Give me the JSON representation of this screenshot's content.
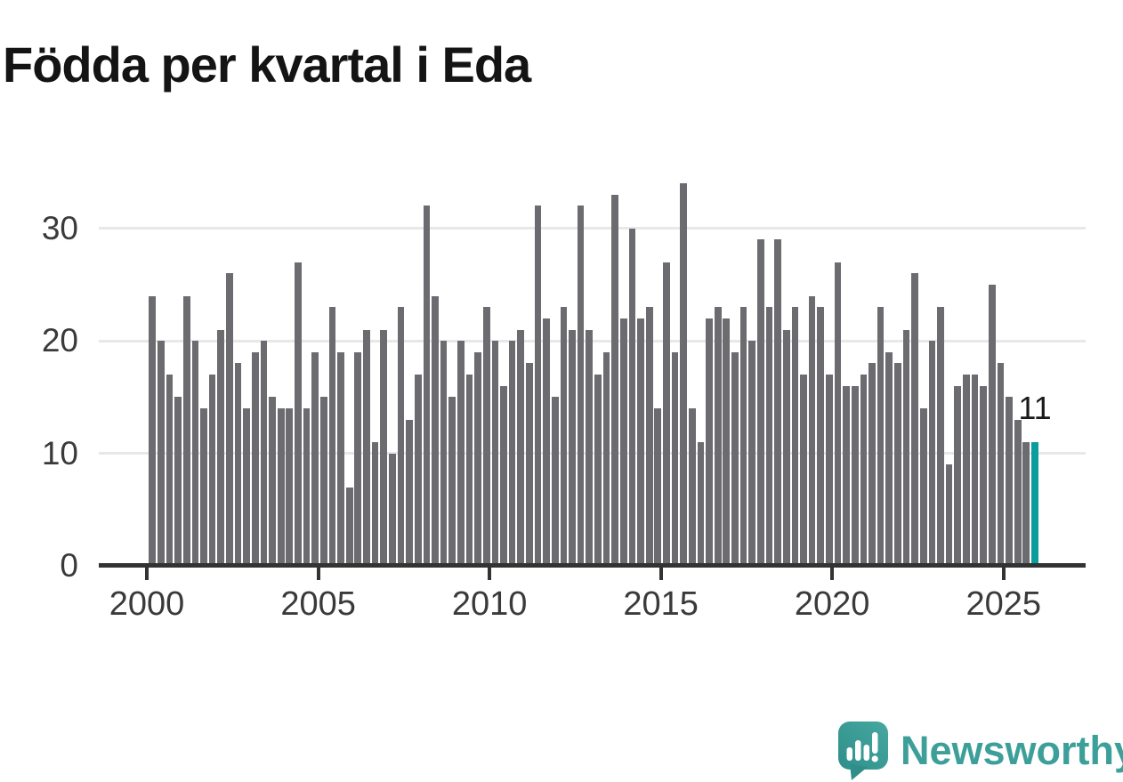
{
  "title": "Födda per kvartal i Eda",
  "annotation": {
    "label": "11"
  },
  "logo": {
    "brand": "Newsworthy",
    "icon": "newsworthy-speech-bubble-chart-icon"
  },
  "chart_data": {
    "type": "bar",
    "title": "Födda per kvartal i Eda",
    "xlabel": "",
    "ylabel": "",
    "frequency": "quarterly",
    "x_start": "2000 Q1",
    "x_end": "2025 Q4",
    "x_tick_labels": [
      "2000",
      "2005",
      "2010",
      "2015",
      "2020",
      "2025"
    ],
    "y_tick_values": [
      0,
      10,
      20,
      30
    ],
    "y_tick_labels": [
      "0",
      "10",
      "20",
      "30"
    ],
    "ylim": [
      0,
      35
    ],
    "grid": "horizontal",
    "legend": "none",
    "values": [
      24,
      20,
      17,
      15,
      24,
      20,
      14,
      17,
      21,
      26,
      18,
      14,
      19,
      20,
      15,
      14,
      14,
      27,
      14,
      19,
      15,
      23,
      19,
      7,
      19,
      21,
      11,
      21,
      10,
      23,
      13,
      17,
      32,
      24,
      20,
      15,
      20,
      17,
      19,
      23,
      20,
      16,
      20,
      21,
      18,
      32,
      22,
      15,
      23,
      21,
      32,
      21,
      17,
      19,
      33,
      22,
      30,
      22,
      23,
      14,
      27,
      19,
      34,
      14,
      11,
      22,
      23,
      22,
      19,
      23,
      20,
      29,
      23,
      29,
      21,
      23,
      17,
      24,
      23,
      17,
      27,
      16,
      16,
      17,
      18,
      23,
      19,
      18,
      21,
      26,
      14,
      20,
      23,
      9,
      16,
      17,
      17,
      16,
      25,
      18,
      15,
      13,
      11,
      11
    ],
    "years": [
      2000,
      2001,
      2002,
      2003,
      2004,
      2005,
      2006,
      2007,
      2008,
      2009,
      2010,
      2011,
      2012,
      2013,
      2014,
      2015,
      2016,
      2017,
      2018,
      2019,
      2020,
      2021,
      2022,
      2023,
      2024,
      2025
    ],
    "highlight": {
      "index": 103,
      "value": 11,
      "label": "11"
    },
    "colors": {
      "bar": "#6b6b70",
      "highlight": "#0a9d9d",
      "grid": "#e8e8e8",
      "axis": "#333333",
      "text": "#3a3a3a"
    }
  }
}
